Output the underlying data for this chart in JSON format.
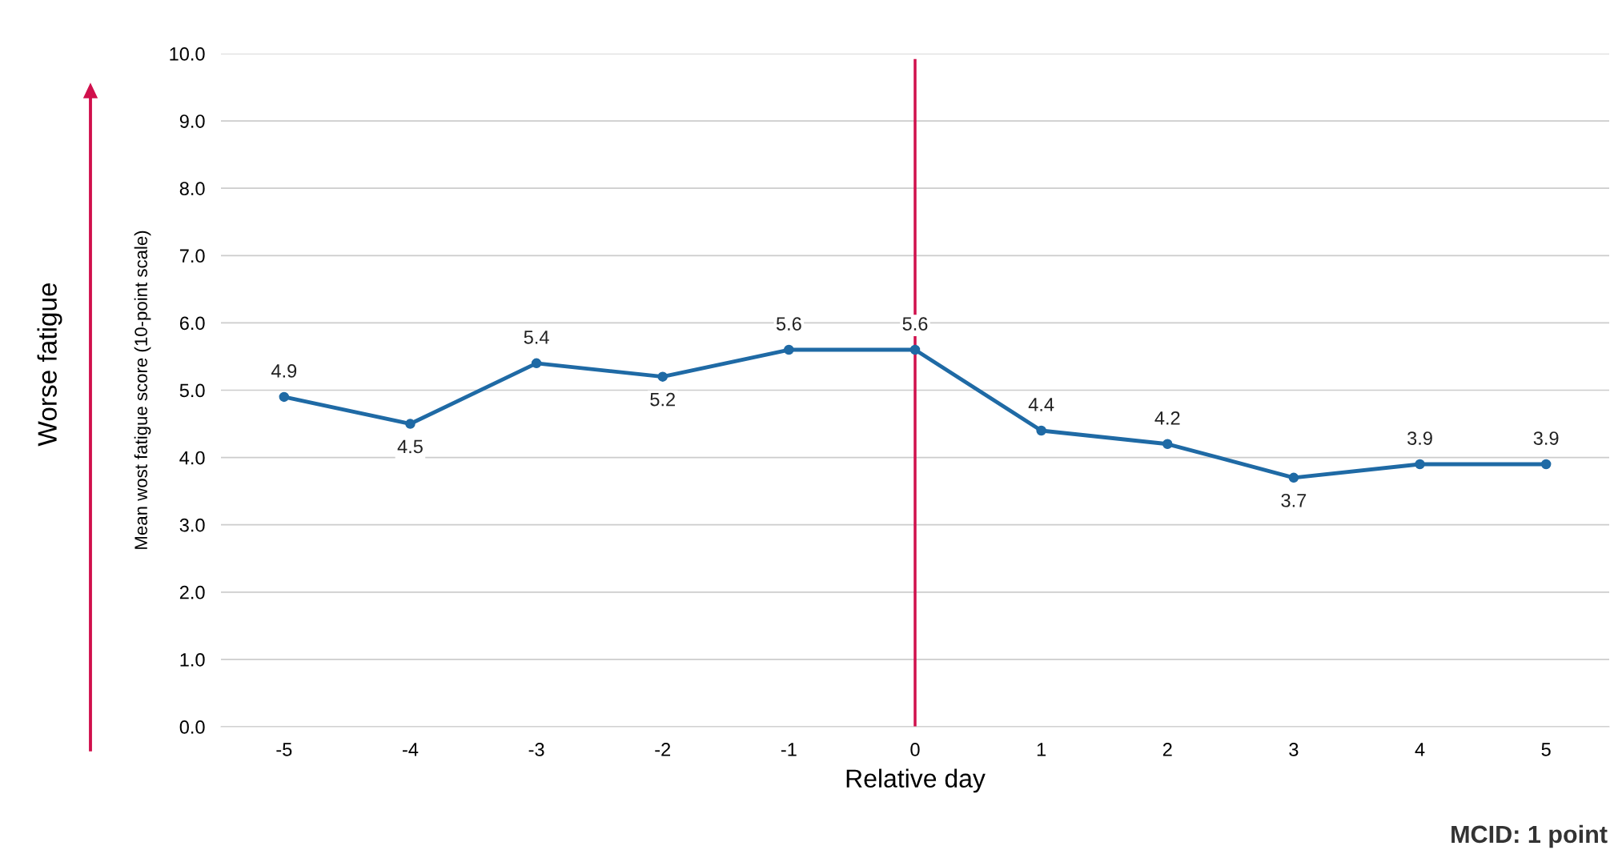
{
  "chart_data": {
    "type": "line",
    "xlabel": "Relative day",
    "ylabel": "Mean wost fatigue score (10-point scale)",
    "categories": [
      "-5",
      "-4",
      "-3",
      "-2",
      "-1",
      "0",
      "1",
      "2",
      "3",
      "4",
      "5"
    ],
    "series": [
      {
        "color": "#1f6aa5",
        "values": [
          4.9,
          4.5,
          5.4,
          5.2,
          5.6,
          5.6,
          4.4,
          4.2,
          3.7,
          3.9,
          3.9
        ]
      }
    ],
    "ylim": [
      0,
      10
    ],
    "yticks": [
      {
        "value": 0,
        "label": "0.0"
      },
      {
        "value": 1,
        "label": "1.0"
      },
      {
        "value": 2,
        "label": "2.0"
      },
      {
        "value": 3,
        "label": "3.0"
      },
      {
        "value": 4,
        "label": "4.0"
      },
      {
        "value": 5,
        "label": "5.0"
      },
      {
        "value": 6,
        "label": "6.0"
      },
      {
        "value": 7,
        "label": "7.0"
      },
      {
        "value": 8,
        "label": "8.0"
      },
      {
        "value": 9,
        "label": "9.0"
      },
      {
        "value": 10,
        "label": "10.0"
      }
    ],
    "grid": "y",
    "marker": "circle",
    "line_style": "solid",
    "data_labels": true,
    "ref_lines": [
      {
        "axis": "x",
        "value": "0",
        "color": "#d0104c"
      }
    ],
    "annotations": [
      "Worse fatigue",
      "MCID: 1 point"
    ]
  }
}
